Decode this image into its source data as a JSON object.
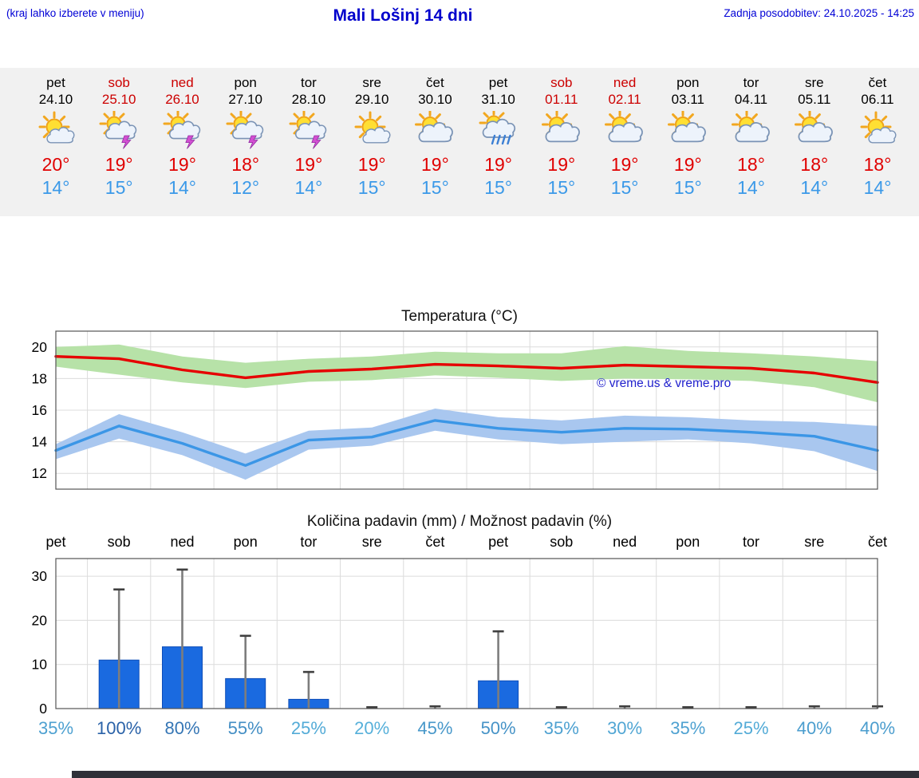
{
  "header": {
    "hint": "(kraj lahko izberete v meniju)",
    "title": "Mali Lošinj 14 dni",
    "updated": "Zadnja posodobitev: 24.10.2025 - 14:25"
  },
  "colors": {
    "accent_blue": "#0000cc",
    "tmax_red": "#e00000",
    "tmin_blue": "#3b99e8",
    "weekend_red": "#cc0000",
    "strip_bg": "#f1f1f1",
    "band_green": "#b7e2a8",
    "band_blue": "#a9c7ef",
    "bar_blue": "#1a6ae0",
    "pop_low": "#56b0da",
    "pop_high": "#2a62a8"
  },
  "days": [
    {
      "name": "pet",
      "date": "24.10",
      "weekend": false,
      "icon": "partly-cloudy-icon",
      "tmax": "20°",
      "tmin": "14°"
    },
    {
      "name": "sob",
      "date": "25.10",
      "weekend": true,
      "icon": "thunderstorm-icon",
      "tmax": "19°",
      "tmin": "15°"
    },
    {
      "name": "ned",
      "date": "26.10",
      "weekend": true,
      "icon": "thunderstorm-icon",
      "tmax": "19°",
      "tmin": "14°"
    },
    {
      "name": "pon",
      "date": "27.10",
      "weekend": false,
      "icon": "thunderstorm-icon",
      "tmax": "18°",
      "tmin": "12°"
    },
    {
      "name": "tor",
      "date": "28.10",
      "weekend": false,
      "icon": "thunderstorm-icon",
      "tmax": "19°",
      "tmin": "14°"
    },
    {
      "name": "sre",
      "date": "29.10",
      "weekend": false,
      "icon": "partly-cloudy-icon",
      "tmax": "19°",
      "tmin": "15°"
    },
    {
      "name": "čet",
      "date": "30.10",
      "weekend": false,
      "icon": "mostly-cloudy-icon",
      "tmax": "19°",
      "tmin": "15°"
    },
    {
      "name": "pet",
      "date": "31.10",
      "weekend": false,
      "icon": "rain-icon",
      "tmax": "19°",
      "tmin": "15°"
    },
    {
      "name": "sob",
      "date": "01.11",
      "weekend": true,
      "icon": "mostly-cloudy-icon",
      "tmax": "19°",
      "tmin": "15°"
    },
    {
      "name": "ned",
      "date": "02.11",
      "weekend": true,
      "icon": "mostly-cloudy-icon",
      "tmax": "19°",
      "tmin": "15°"
    },
    {
      "name": "pon",
      "date": "03.11",
      "weekend": false,
      "icon": "mostly-cloudy-icon",
      "tmax": "19°",
      "tmin": "15°"
    },
    {
      "name": "tor",
      "date": "04.11",
      "weekend": false,
      "icon": "mostly-cloudy-icon",
      "tmax": "18°",
      "tmin": "14°"
    },
    {
      "name": "sre",
      "date": "05.11",
      "weekend": false,
      "icon": "mostly-cloudy-icon",
      "tmax": "18°",
      "tmin": "14°"
    },
    {
      "name": "čet",
      "date": "06.11",
      "weekend": false,
      "icon": "partly-cloudy-icon",
      "tmax": "18°",
      "tmin": "14°"
    }
  ],
  "chart_data": [
    {
      "type": "line",
      "title": "Temperatura (°C)",
      "categories": [
        "pet",
        "sob",
        "ned",
        "pon",
        "tor",
        "sre",
        "čet",
        "pet",
        "sob",
        "ned",
        "pon",
        "tor",
        "sre",
        "čet"
      ],
      "ylim": [
        11,
        21
      ],
      "yticks": [
        12,
        14,
        16,
        18,
        20
      ],
      "grid": true,
      "legend": "none",
      "watermark": "© vreme.us & vreme.pro",
      "series": [
        {
          "name": "tmax",
          "color": "#e60000",
          "band_color": "#b7e2a8",
          "values": [
            19.4,
            19.25,
            18.55,
            18.05,
            18.45,
            18.6,
            18.9,
            18.8,
            18.65,
            18.85,
            18.75,
            18.65,
            18.35,
            17.75
          ],
          "band_upper": [
            20.0,
            20.15,
            19.4,
            19.0,
            19.25,
            19.4,
            19.7,
            19.6,
            19.6,
            20.05,
            19.75,
            19.6,
            19.4,
            19.1
          ],
          "band_lower": [
            18.75,
            18.25,
            17.75,
            17.4,
            17.8,
            17.9,
            18.2,
            18.05,
            17.85,
            18.0,
            17.95,
            17.85,
            17.45,
            16.5
          ]
        },
        {
          "name": "tmin",
          "color": "#3b96e6",
          "band_color": "#a9c7ef",
          "values": [
            13.45,
            15.0,
            13.9,
            12.5,
            14.1,
            14.3,
            15.35,
            14.85,
            14.6,
            14.85,
            14.8,
            14.6,
            14.35,
            13.45
          ],
          "band_upper": [
            13.85,
            15.75,
            14.6,
            13.25,
            14.7,
            14.9,
            16.1,
            15.55,
            15.35,
            15.65,
            15.55,
            15.35,
            15.25,
            15.0
          ],
          "band_lower": [
            12.9,
            14.2,
            13.15,
            11.6,
            13.5,
            13.75,
            14.7,
            14.15,
            13.85,
            14.0,
            14.15,
            13.9,
            13.4,
            12.15
          ]
        }
      ]
    },
    {
      "type": "bar",
      "title": "Količina padavin (mm) / Možnost padavin (%)",
      "categories": [
        "pet",
        "sob",
        "ned",
        "pon",
        "tor",
        "sre",
        "čet",
        "pet",
        "sob",
        "ned",
        "pon",
        "tor",
        "sre",
        "čet"
      ],
      "ylim": [
        0,
        34
      ],
      "yticks": [
        0,
        10,
        20,
        30
      ],
      "grid": true,
      "bar_color": "#1a6ae0",
      "values": [
        0,
        11,
        14,
        6.8,
        2.1,
        0,
        0,
        6.3,
        0,
        0,
        0,
        0,
        0,
        0
      ],
      "whisker_max": [
        0,
        27,
        31.5,
        16.5,
        8.3,
        0.3,
        0.5,
        17.5,
        0.3,
        0.5,
        0.3,
        0.3,
        0.5,
        0.5
      ],
      "pop_labels": [
        "35%",
        "100%",
        "80%",
        "55%",
        "25%",
        "20%",
        "45%",
        "50%",
        "35%",
        "30%",
        "35%",
        "25%",
        "40%",
        "40%"
      ],
      "pop_values": [
        35,
        100,
        80,
        55,
        25,
        20,
        45,
        50,
        35,
        30,
        35,
        25,
        40,
        40
      ]
    }
  ]
}
